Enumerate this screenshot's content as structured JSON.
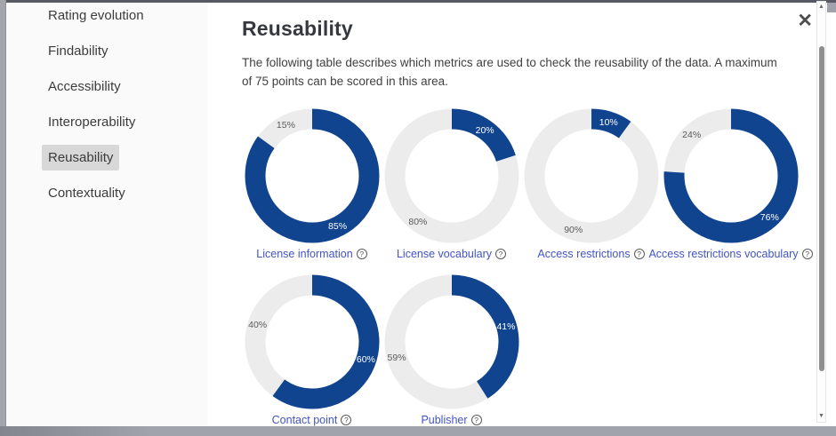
{
  "sidebar": {
    "items": [
      {
        "label": "Rating evolution",
        "active": false
      },
      {
        "label": "Findability",
        "active": false
      },
      {
        "label": "Accessibility",
        "active": false
      },
      {
        "label": "Interoperability",
        "active": false
      },
      {
        "label": "Reusability",
        "active": true
      },
      {
        "label": "Contextuality",
        "active": false
      }
    ]
  },
  "modal": {
    "title": "Reusability",
    "description": "The following table describes which metrics are used to check the reusability of the data. A maximum of 75 points can be scored in this area."
  },
  "icons": {
    "close": "✕",
    "help": "?",
    "scroll_up": "▲",
    "scroll_down": "▼"
  },
  "chart_data": {
    "type": "pie",
    "subtype": "donut-multiples",
    "unit": "%",
    "legend_position": "none",
    "colors": {
      "filled": "#10448f",
      "remainder": "#ececec",
      "filled_label": "#ffffff",
      "remainder_label": "#5a5a5a"
    },
    "charts": [
      {
        "label": "License information",
        "value": 85,
        "remainder": 15
      },
      {
        "label": "License vocabulary",
        "value": 20,
        "remainder": 80
      },
      {
        "label": "Access restrictions",
        "value": 10,
        "remainder": 90
      },
      {
        "label": "Access restrictions vocabulary",
        "value": 76,
        "remainder": 24
      },
      {
        "label": "Contact point",
        "value": 60,
        "remainder": 40
      },
      {
        "label": "Publisher",
        "value": 41,
        "remainder": 59
      }
    ]
  }
}
